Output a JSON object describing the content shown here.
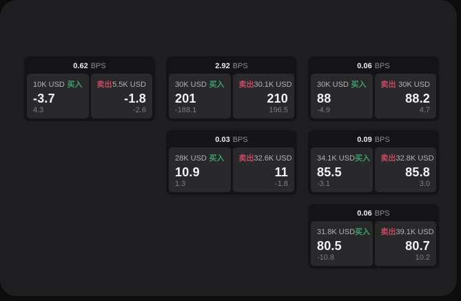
{
  "colors": {
    "backdrop": "#0c0c0d",
    "window_bg": "#1e1e20",
    "card_bg": "#141416",
    "panel_bg": "#29292b",
    "header_value": "#ececef",
    "header_unit": "#8c8c90",
    "size_text": "#b3b3b6",
    "price_text": "#f4f4f6",
    "delta_text": "#7d7d81",
    "buy_green": "#3aa06a",
    "sell_red": "#c44a63"
  },
  "cards": [
    {
      "col": 1,
      "row": 1,
      "bps": "0.62",
      "unit": "BPS",
      "buy": {
        "label": "买入",
        "size": "10K USD",
        "price": "-3.7",
        "delta": "4.3"
      },
      "sell": {
        "label": "卖出",
        "size": "5.5K USD",
        "price": "-1.8",
        "delta": "-2.6"
      }
    },
    {
      "col": 2,
      "row": 1,
      "bps": "2.92",
      "unit": "BPS",
      "buy": {
        "label": "买入",
        "size": "30K USD",
        "price": "201",
        "delta": "-188.1"
      },
      "sell": {
        "label": "卖出",
        "size": "30.1K USD",
        "price": "210",
        "delta": "196.5"
      }
    },
    {
      "col": 3,
      "row": 1,
      "bps": "0.06",
      "unit": "BPS",
      "buy": {
        "label": "买入",
        "size": "30K USD",
        "price": "88",
        "delta": "-4.9"
      },
      "sell": {
        "label": "卖出",
        "size": "30K USD",
        "price": "88.2",
        "delta": "4.7"
      }
    },
    {
      "col": 2,
      "row": 2,
      "bps": "0.03",
      "unit": "BPS",
      "buy": {
        "label": "买入",
        "size": "28K USD",
        "price": "10.9",
        "delta": "1.3"
      },
      "sell": {
        "label": "卖出",
        "size": "32.6K USD",
        "price": "11",
        "delta": "-1.8"
      }
    },
    {
      "col": 3,
      "row": 2,
      "bps": "0.09",
      "unit": "BPS",
      "buy": {
        "label": "买入",
        "size": "34.1K USD",
        "price": "85.5",
        "delta": "-3.1"
      },
      "sell": {
        "label": "卖出",
        "size": "32.8K USD",
        "price": "85.8",
        "delta": "3.0"
      }
    },
    {
      "col": 3,
      "row": 3,
      "bps": "0.06",
      "unit": "BPS",
      "buy": {
        "label": "买入",
        "size": "31.8K USD",
        "price": "80.5",
        "delta": "-10.8"
      },
      "sell": {
        "label": "卖出",
        "size": "39.1K USD",
        "price": "80.7",
        "delta": "10.2"
      }
    }
  ]
}
